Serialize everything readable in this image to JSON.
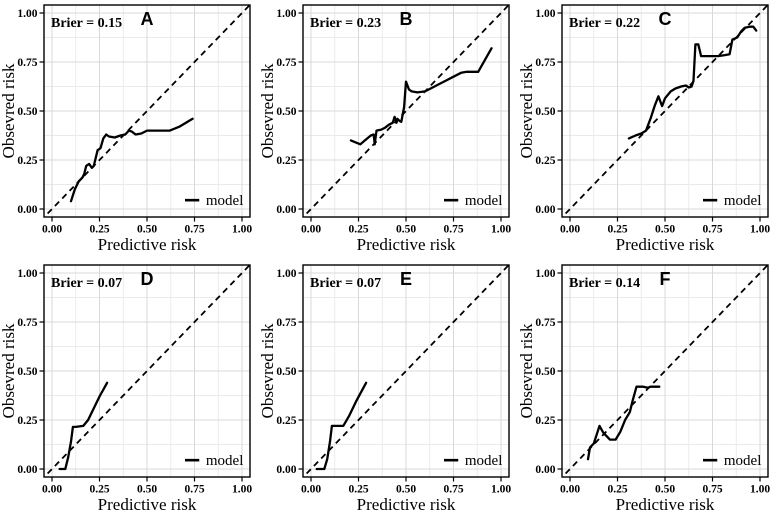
{
  "figure_name": "calibration-plots",
  "axes": {
    "x_label": "Predictive risk",
    "y_label": "Obsevred risk",
    "x_tick_labels": [
      "0.00",
      "0.25",
      "0.50",
      "0.75",
      "1.00"
    ],
    "y_tick_labels": [
      "0.00",
      "0.25",
      "0.50",
      "0.75",
      "1.00"
    ],
    "major_ticks": [
      0,
      0.25,
      0.5,
      0.75,
      1
    ],
    "minor_ticks": [
      0.125,
      0.375,
      0.625,
      0.875
    ],
    "xlim": [
      0,
      1
    ],
    "ylim": [
      0,
      1
    ],
    "grid": true
  },
  "legend": {
    "label": "model",
    "position": "bottom-right"
  },
  "reference_line": {
    "style": "dashed",
    "equation": "y = x"
  },
  "colors": {
    "model_line": "#000000",
    "diagonal": "#000000",
    "grid_major": "#d9d9d9",
    "grid_minor": "#eaeaea",
    "panel_border": "#000000",
    "background": "#ffffff",
    "text": "#000000"
  },
  "chart_data": [
    {
      "type": "line",
      "panel_label": "A",
      "annotation": "Brier = 0.15",
      "brier": 0.15,
      "legend": "model",
      "xlabel": "Predictive risk",
      "ylabel": "Obsevred risk",
      "xlim": [
        0,
        1
      ],
      "ylim": [
        0,
        1
      ],
      "points": [
        [
          0.1,
          0.04
        ],
        [
          0.12,
          0.1
        ],
        [
          0.14,
          0.14
        ],
        [
          0.16,
          0.16
        ],
        [
          0.17,
          0.18
        ],
        [
          0.18,
          0.22
        ],
        [
          0.195,
          0.23
        ],
        [
          0.21,
          0.21
        ],
        [
          0.22,
          0.22
        ],
        [
          0.24,
          0.3
        ],
        [
          0.255,
          0.31
        ],
        [
          0.27,
          0.36
        ],
        [
          0.285,
          0.38
        ],
        [
          0.3,
          0.37
        ],
        [
          0.33,
          0.365
        ],
        [
          0.36,
          0.375
        ],
        [
          0.385,
          0.38
        ],
        [
          0.405,
          0.4
        ],
        [
          0.42,
          0.395
        ],
        [
          0.44,
          0.38
        ],
        [
          0.47,
          0.385
        ],
        [
          0.5,
          0.4
        ],
        [
          0.56,
          0.4
        ],
        [
          0.62,
          0.4
        ],
        [
          0.67,
          0.42
        ],
        [
          0.74,
          0.46
        ]
      ]
    },
    {
      "type": "line",
      "panel_label": "B",
      "annotation": "Brier = 0.23",
      "brier": 0.23,
      "legend": "model",
      "xlabel": "Predictive risk",
      "ylabel": "Obsevred risk",
      "xlim": [
        0,
        1
      ],
      "ylim": [
        0,
        1
      ],
      "points": [
        [
          0.21,
          0.35
        ],
        [
          0.235,
          0.34
        ],
        [
          0.26,
          0.33
        ],
        [
          0.29,
          0.355
        ],
        [
          0.315,
          0.375
        ],
        [
          0.33,
          0.38
        ],
        [
          0.335,
          0.33
        ],
        [
          0.345,
          0.4
        ],
        [
          0.37,
          0.405
        ],
        [
          0.39,
          0.415
        ],
        [
          0.41,
          0.43
        ],
        [
          0.43,
          0.44
        ],
        [
          0.44,
          0.47
        ],
        [
          0.45,
          0.44
        ],
        [
          0.455,
          0.46
        ],
        [
          0.465,
          0.45
        ],
        [
          0.475,
          0.445
        ],
        [
          0.49,
          0.52
        ],
        [
          0.5,
          0.65
        ],
        [
          0.515,
          0.61
        ],
        [
          0.53,
          0.6
        ],
        [
          0.56,
          0.595
        ],
        [
          0.6,
          0.6
        ],
        [
          0.63,
          0.615
        ],
        [
          0.67,
          0.635
        ],
        [
          0.71,
          0.655
        ],
        [
          0.75,
          0.675
        ],
        [
          0.79,
          0.695
        ],
        [
          0.82,
          0.7
        ],
        [
          0.88,
          0.7
        ],
        [
          0.95,
          0.82
        ]
      ]
    },
    {
      "type": "line",
      "panel_label": "C",
      "annotation": "Brier = 0.22",
      "brier": 0.22,
      "legend": "model",
      "xlabel": "Predictive risk",
      "ylabel": "Obsevred risk",
      "xlim": [
        0,
        1
      ],
      "ylim": [
        0,
        1
      ],
      "points": [
        [
          0.31,
          0.36
        ],
        [
          0.345,
          0.375
        ],
        [
          0.375,
          0.385
        ],
        [
          0.4,
          0.4
        ],
        [
          0.425,
          0.465
        ],
        [
          0.445,
          0.525
        ],
        [
          0.465,
          0.575
        ],
        [
          0.485,
          0.525
        ],
        [
          0.5,
          0.565
        ],
        [
          0.53,
          0.6
        ],
        [
          0.555,
          0.615
        ],
        [
          0.585,
          0.625
        ],
        [
          0.61,
          0.63
        ],
        [
          0.625,
          0.62
        ],
        [
          0.64,
          0.625
        ],
        [
          0.65,
          0.655
        ],
        [
          0.66,
          0.84
        ],
        [
          0.675,
          0.84
        ],
        [
          0.69,
          0.78
        ],
        [
          0.73,
          0.78
        ],
        [
          0.78,
          0.78
        ],
        [
          0.815,
          0.785
        ],
        [
          0.84,
          0.79
        ],
        [
          0.855,
          0.865
        ],
        [
          0.88,
          0.875
        ],
        [
          0.9,
          0.905
        ],
        [
          0.92,
          0.925
        ],
        [
          0.945,
          0.93
        ],
        [
          0.965,
          0.93
        ],
        [
          0.98,
          0.91
        ]
      ]
    },
    {
      "type": "line",
      "panel_label": "D",
      "annotation": "Brier = 0.07",
      "brier": 0.07,
      "legend": "model",
      "xlabel": "Predictive risk",
      "ylabel": "Obsevred risk",
      "xlim": [
        0,
        1
      ],
      "ylim": [
        0,
        1
      ],
      "points": [
        [
          0.04,
          0.0
        ],
        [
          0.07,
          0.0
        ],
        [
          0.085,
          0.06
        ],
        [
          0.1,
          0.14
        ],
        [
          0.11,
          0.215
        ],
        [
          0.125,
          0.215
        ],
        [
          0.165,
          0.22
        ],
        [
          0.19,
          0.25
        ],
        [
          0.22,
          0.31
        ],
        [
          0.25,
          0.37
        ],
        [
          0.29,
          0.44
        ]
      ]
    },
    {
      "type": "line",
      "panel_label": "E",
      "annotation": "Brier = 0.07",
      "brier": 0.07,
      "legend": "model",
      "xlabel": "Predictive risk",
      "ylabel": "Obsevred risk",
      "xlim": [
        0,
        1
      ],
      "ylim": [
        0,
        1
      ],
      "points": [
        [
          0.03,
          0.0
        ],
        [
          0.07,
          0.0
        ],
        [
          0.085,
          0.05
        ],
        [
          0.1,
          0.14
        ],
        [
          0.11,
          0.22
        ],
        [
          0.125,
          0.22
        ],
        [
          0.17,
          0.22
        ],
        [
          0.2,
          0.27
        ],
        [
          0.24,
          0.35
        ],
        [
          0.29,
          0.44
        ]
      ]
    },
    {
      "type": "line",
      "panel_label": "F",
      "annotation": "Brier = 0.14",
      "brier": 0.14,
      "legend": "model",
      "xlabel": "Predictive risk",
      "ylabel": "Obsevred risk",
      "xlim": [
        0,
        1
      ],
      "ylim": [
        0,
        1
      ],
      "points": [
        [
          0.095,
          0.05
        ],
        [
          0.105,
          0.11
        ],
        [
          0.125,
          0.13
        ],
        [
          0.155,
          0.22
        ],
        [
          0.175,
          0.185
        ],
        [
          0.21,
          0.15
        ],
        [
          0.24,
          0.15
        ],
        [
          0.265,
          0.19
        ],
        [
          0.29,
          0.25
        ],
        [
          0.315,
          0.29
        ],
        [
          0.33,
          0.35
        ],
        [
          0.35,
          0.42
        ],
        [
          0.385,
          0.42
        ],
        [
          0.41,
          0.415
        ],
        [
          0.425,
          0.42
        ],
        [
          0.47,
          0.42
        ]
      ]
    }
  ]
}
